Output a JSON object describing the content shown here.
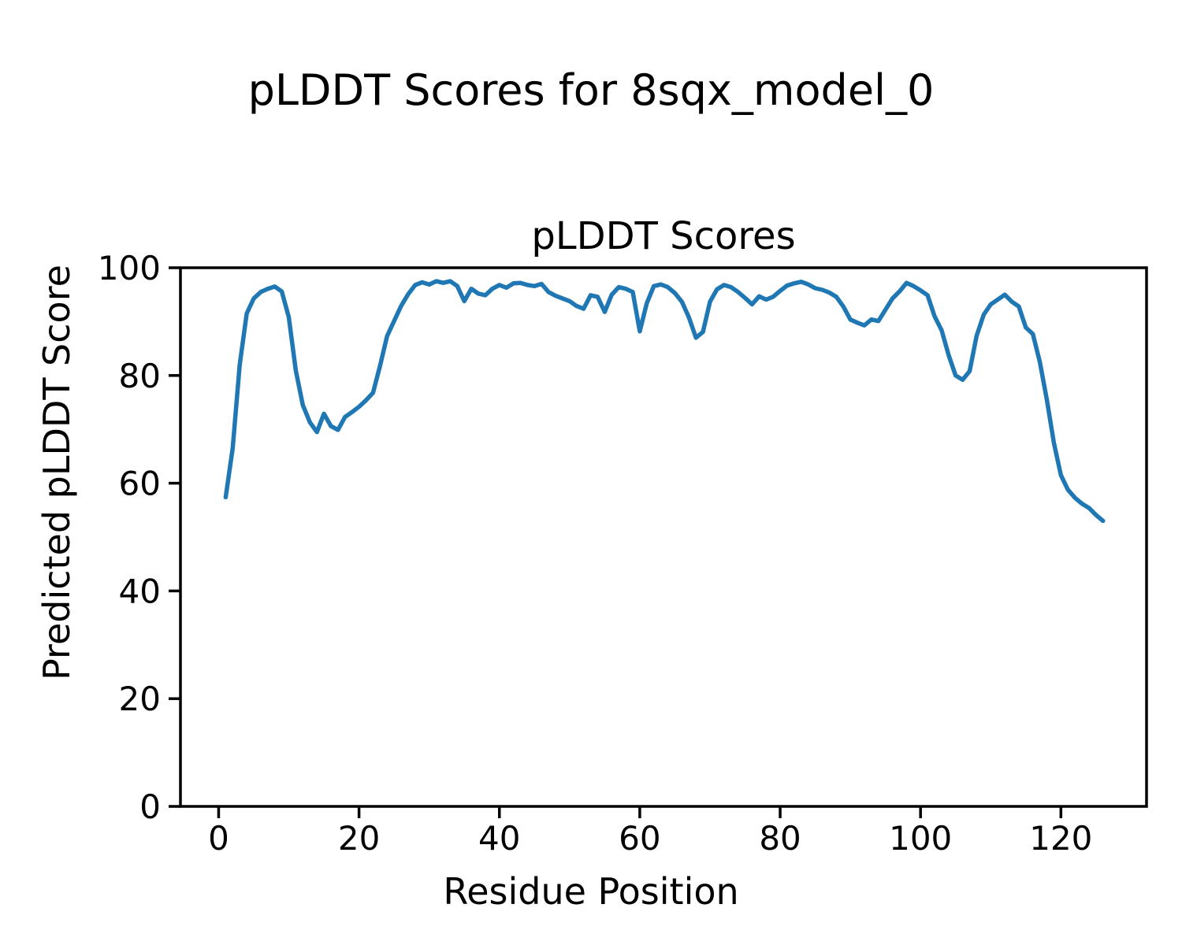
{
  "suptitle": "pLDDT Scores for 8sqx_model_0",
  "chart_data": {
    "type": "line",
    "title": "pLDDT Scores",
    "xlabel": "Residue Position",
    "ylabel": "Predicted pLDDT Score",
    "x_ticks": [
      0,
      20,
      40,
      60,
      80,
      100,
      120
    ],
    "y_ticks": [
      0,
      20,
      40,
      60,
      80,
      100
    ],
    "xlim": [
      -5.44,
      132.2
    ],
    "ylim": [
      0,
      100
    ],
    "grid": false,
    "legend": null,
    "line_color": "#1f77b4",
    "x_start": 1,
    "x_step": 1,
    "values": [
      57.4,
      66.5,
      82.0,
      91.5,
      94.3,
      95.5,
      96.1,
      96.5,
      95.6,
      90.8,
      80.9,
      74.5,
      71.3,
      69.5,
      72.9,
      70.6,
      69.9,
      72.3,
      73.2,
      74.2,
      75.4,
      76.8,
      81.8,
      87.3,
      90.1,
      92.9,
      95.1,
      96.8,
      97.3,
      96.9,
      97.5,
      97.2,
      97.5,
      96.6,
      93.8,
      96.1,
      95.2,
      94.9,
      96.1,
      96.8,
      96.3,
      97.1,
      97.2,
      96.8,
      96.6,
      97.0,
      95.5,
      94.8,
      94.3,
      93.8,
      92.9,
      92.4,
      94.9,
      94.6,
      91.8,
      95.0,
      96.4,
      96.1,
      95.5,
      88.2,
      93.4,
      96.6,
      96.9,
      96.4,
      95.3,
      93.7,
      90.8,
      87.0,
      88.1,
      93.7,
      96.0,
      96.8,
      96.4,
      95.5,
      94.4,
      93.2,
      94.7,
      94.1,
      94.6,
      95.7,
      96.7,
      97.1,
      97.4,
      96.9,
      96.2,
      95.9,
      95.4,
      94.6,
      92.8,
      90.4,
      89.8,
      89.3,
      90.4,
      90.1,
      92.2,
      94.3,
      95.6,
      97.2,
      96.6,
      95.8,
      94.9,
      91.0,
      88.4,
      83.8,
      80.0,
      79.2,
      80.8,
      87.4,
      91.3,
      93.2,
      94.1,
      95.0,
      93.7,
      92.8,
      88.9,
      87.7,
      82.5,
      75.5,
      67.5,
      61.5,
      58.8,
      57.3,
      56.2,
      55.4,
      54.1,
      53.0
    ]
  }
}
